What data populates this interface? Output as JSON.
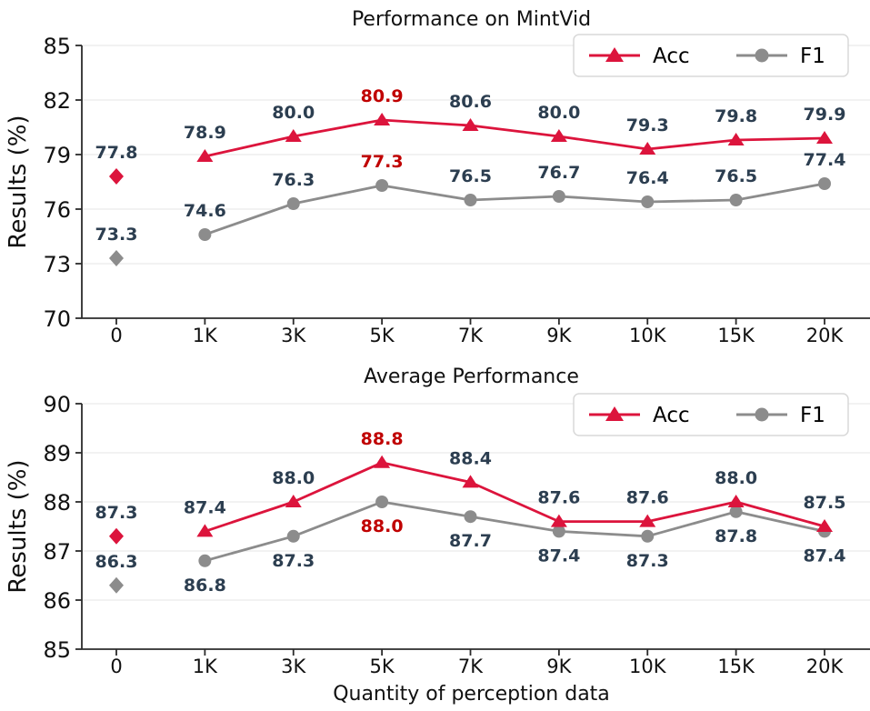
{
  "colors": {
    "acc": "#DC143C",
    "f1": "#8C8C8C",
    "point_label": "#2C3E50",
    "point_label_highlight": "#C00000",
    "grid": "#E6E6E6",
    "axis": "#2b2b2b",
    "tick_label": "#111111",
    "legend_border": "#D8D8D8",
    "background": "#FFFFFF"
  },
  "chart_data": [
    {
      "type": "line",
      "title": "Performance on MintVid",
      "ylabel": "Results (%)",
      "xlabel": "",
      "categories": [
        "0",
        "1K",
        "3K",
        "5K",
        "7K",
        "9K",
        "10K",
        "15K",
        "20K"
      ],
      "ylim": [
        70,
        85
      ],
      "yticks": [
        70,
        73,
        76,
        79,
        82,
        85
      ],
      "grid": true,
      "legend_position": "upper right",
      "series": [
        {
          "name": "F1",
          "marker": "circle",
          "first_marker": "diamond",
          "line_starts_at": 1,
          "values": [
            73.3,
            74.6,
            76.3,
            77.3,
            76.5,
            76.7,
            76.4,
            76.5,
            77.4
          ],
          "labels": [
            "73.3",
            "74.6",
            "76.3",
            "77.3",
            "76.5",
            "76.7",
            "76.4",
            "76.5",
            "77.4"
          ],
          "label_side": [
            "above",
            "above",
            "above",
            "above",
            "above",
            "above",
            "above",
            "above",
            "above"
          ],
          "highlight_index": 3
        },
        {
          "name": "Acc",
          "marker": "triangle",
          "first_marker": "diamond",
          "line_starts_at": 1,
          "values": [
            77.8,
            78.9,
            80.0,
            80.9,
            80.6,
            80.0,
            79.3,
            79.8,
            79.9
          ],
          "labels": [
            "77.8",
            "78.9",
            "80.0",
            "80.9",
            "80.6",
            "80.0",
            "79.3",
            "79.8",
            "79.9"
          ],
          "label_side": [
            "above",
            "above",
            "above",
            "above",
            "above",
            "above",
            "above",
            "above",
            "above"
          ],
          "highlight_index": 3
        }
      ]
    },
    {
      "type": "line",
      "title": "Average Performance",
      "ylabel": "Results (%)",
      "xlabel": "Quantity of perception data",
      "categories": [
        "0",
        "1K",
        "3K",
        "5K",
        "7K",
        "9K",
        "10K",
        "15K",
        "20K"
      ],
      "ylim": [
        85,
        90
      ],
      "yticks": [
        85,
        86,
        87,
        88,
        89,
        90
      ],
      "grid": true,
      "legend_position": "upper right",
      "series": [
        {
          "name": "F1",
          "marker": "circle",
          "first_marker": "diamond",
          "line_starts_at": 1,
          "values": [
            86.3,
            86.8,
            87.3,
            88.0,
            87.7,
            87.4,
            87.3,
            87.8,
            87.4
          ],
          "labels": [
            "86.3",
            "86.8",
            "87.3",
            "88.0",
            "87.7",
            "87.4",
            "87.3",
            "87.8",
            "87.4"
          ],
          "label_side": [
            "above",
            "below",
            "below",
            "below",
            "below",
            "below",
            "below",
            "below",
            "below"
          ],
          "highlight_index": 3
        },
        {
          "name": "Acc",
          "marker": "triangle",
          "first_marker": "diamond",
          "line_starts_at": 1,
          "values": [
            87.3,
            87.4,
            88.0,
            88.8,
            88.4,
            87.6,
            87.6,
            88.0,
            87.5
          ],
          "labels": [
            "87.3",
            "87.4",
            "88.0",
            "88.8",
            "88.4",
            "87.6",
            "87.6",
            "88.0",
            "87.5"
          ],
          "label_side": [
            "above",
            "above",
            "above",
            "above",
            "above",
            "above",
            "above",
            "above",
            "above"
          ],
          "highlight_index": 3
        }
      ]
    }
  ]
}
